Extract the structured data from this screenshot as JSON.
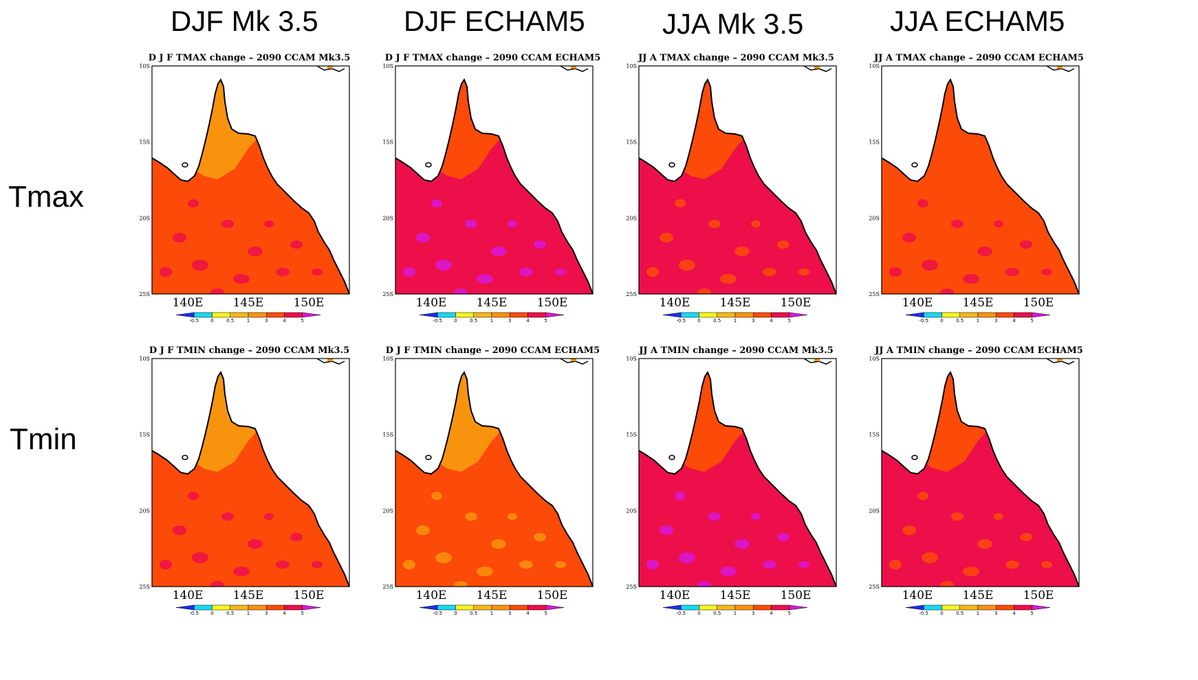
{
  "column_titles": [
    "DJF Mk 3.5",
    "DJF ECHAM5",
    "JJA Mk 3.5",
    "JJA ECHAM5"
  ],
  "row_labels": [
    "Tmax",
    "Tmin"
  ],
  "colors": {
    "ocean": "#ffffff",
    "coast": "#000000",
    "scale": [
      "#1e2cf0",
      "#19d9f2",
      "#f5f51e",
      "#f7b71a",
      "#f8930e",
      "#fc4a08",
      "#ec0f4a",
      "#d818d8"
    ]
  },
  "lat_ticks": [
    "10S",
    "15S",
    "20S",
    "25S"
  ],
  "lon_ticks": [
    "140E",
    "145E",
    "150E"
  ],
  "colorbar_ticks": [
    "-0.5",
    "0",
    "0.5",
    "1",
    "3",
    "4",
    "5"
  ],
  "panels": [
    {
      "title": "D J F  TMAX change  –  2090  CCAM  Mk3.5",
      "base": "#fc4a08",
      "north": "#f8930e",
      "patches": "#ec0f4a"
    },
    {
      "title": "D J F  TMAX change  –  2090  CCAM  ECHAM5",
      "base": "#ec0f4a",
      "north": "#fc4a08",
      "patches": "#d818d8"
    },
    {
      "title": "JJ A  TMAX change  –  2090  CCAM  Mk3.5",
      "base": "#ec0f4a",
      "north": "#fc4a08",
      "patches": "#fc4a08"
    },
    {
      "title": "JJ A  TMAX change  –  2090  CCAM  ECHAM5",
      "base": "#fc4a08",
      "north": "#fc4a08",
      "patches": "#ec0f4a"
    },
    {
      "title": "D J F  TMIN change  –  2090  CCAM  Mk3.5",
      "base": "#fc4a08",
      "north": "#f8930e",
      "patches": "#ec0f4a"
    },
    {
      "title": "D J F  TMIN change  –  2090  CCAM  ECHAM5",
      "base": "#fc4a08",
      "north": "#f8930e",
      "patches": "#f8930e"
    },
    {
      "title": "JJ A  TMIN change  –  2090  CCAM  Mk3.5",
      "base": "#ec0f4a",
      "north": "#fc4a08",
      "patches": "#d818d8"
    },
    {
      "title": "JJ A  TMIN change  –  2090  CCAM  ECHAM5",
      "base": "#ec0f4a",
      "north": "#fc4a08",
      "patches": "#fc4a08"
    }
  ]
}
